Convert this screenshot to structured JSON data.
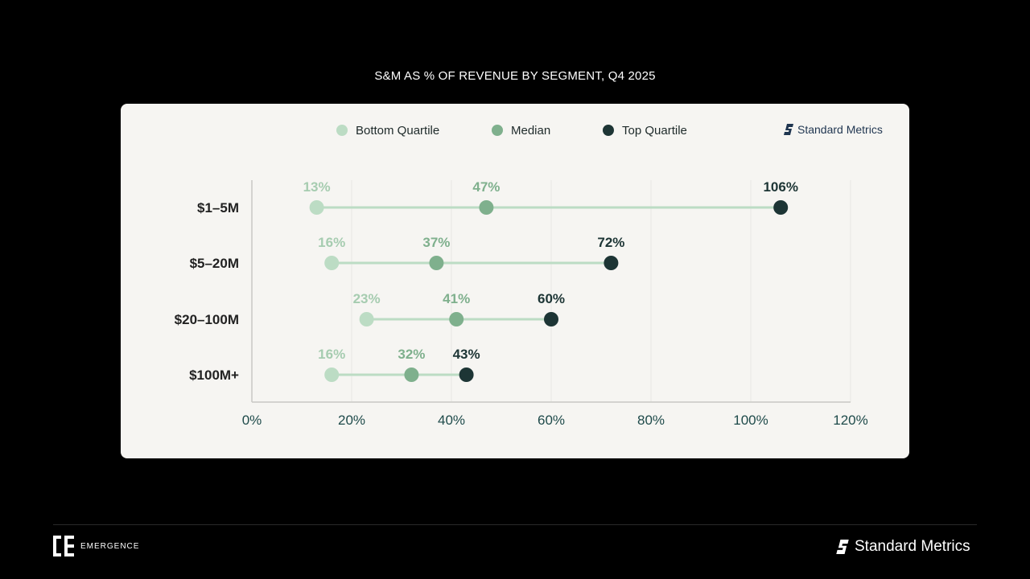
{
  "title": "S&M AS % OF REVENUE BY SEGMENT, Q4 2025",
  "legend": [
    {
      "label": "Bottom Quartile",
      "color": "#bcdcc4"
    },
    {
      "label": "Median",
      "color": "#7fb08d"
    },
    {
      "label": "Top Quartile",
      "color": "#1d3535"
    }
  ],
  "card_brand": "Standard Metrics",
  "footer": {
    "left_brand": "EMERGENCE",
    "right_brand": "Standard Metrics"
  },
  "colors": {
    "bottom": "#bcdcc4",
    "median": "#7fb08d",
    "top": "#1d3535",
    "bottom_label": "#a6ccb0",
    "median_label": "#7fb08d",
    "top_label": "#1d3535",
    "line": "#bcdcc4",
    "grid": "#e8e8e4",
    "axis": "#c8c8c4",
    "tick": "#1e4a4a",
    "category": "#222222"
  },
  "chart_data": {
    "type": "dumbbell",
    "title": "S&M AS % OF REVENUE BY SEGMENT, Q4 2025",
    "categories": [
      "$1–5M",
      "$5–20M",
      "$20–100M",
      "$100M+"
    ],
    "series": [
      {
        "name": "Bottom Quartile",
        "values": [
          13,
          16,
          23,
          16
        ]
      },
      {
        "name": "Median",
        "values": [
          47,
          37,
          41,
          32
        ]
      },
      {
        "name": "Top Quartile",
        "values": [
          106,
          72,
          60,
          43
        ]
      }
    ],
    "value_labels": [
      [
        "13%",
        "47%",
        "106%"
      ],
      [
        "16%",
        "37%",
        "72%"
      ],
      [
        "23%",
        "41%",
        "60%"
      ],
      [
        "16%",
        "32%",
        "43%"
      ]
    ],
    "xlim": [
      0,
      120
    ],
    "xticks": [
      "0%",
      "20%",
      "40%",
      "60%",
      "80%",
      "100%",
      "120%"
    ],
    "grid": "vertical",
    "legend_position": "top"
  }
}
